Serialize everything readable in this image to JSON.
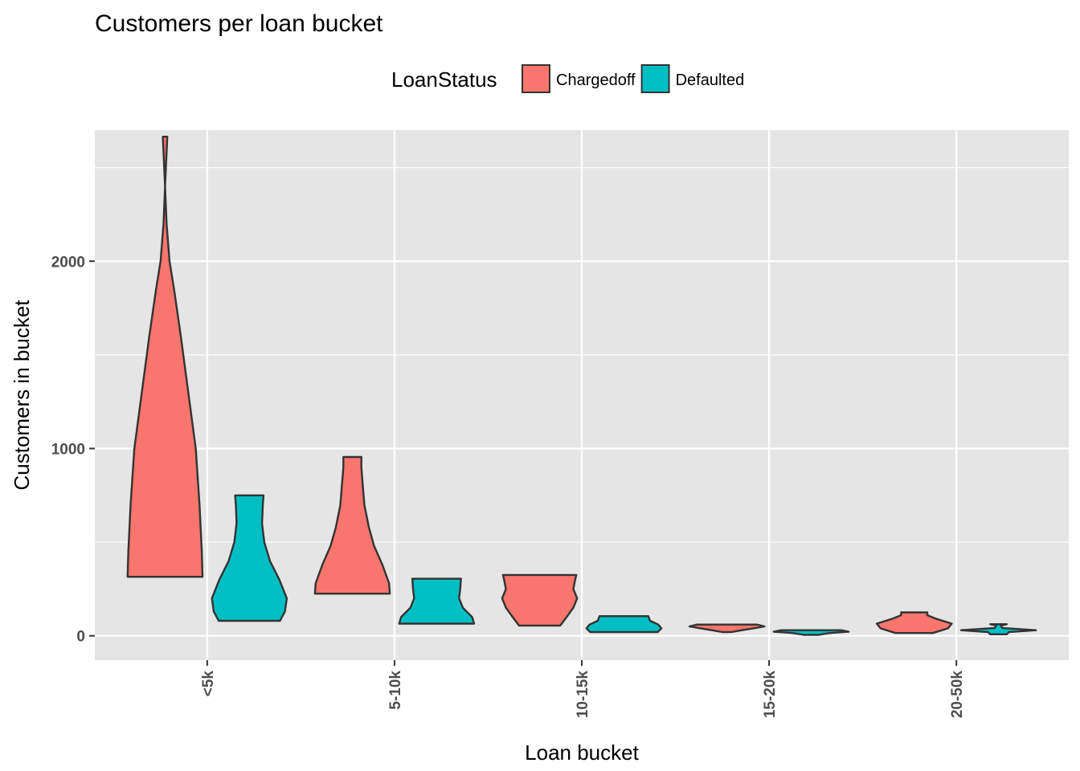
{
  "chart_data": {
    "type": "violin",
    "title": "Customers per loan bucket",
    "xlabel": "Loan bucket",
    "ylabel": "Customers in bucket",
    "categories": [
      "<5k",
      "5-10k",
      "10-15k",
      "15-20k",
      "20-50k"
    ],
    "ylim": [
      -130,
      2700
    ],
    "yticks": [
      0,
      1000,
      2000
    ],
    "grid": true,
    "legend": {
      "title": "LoanStatus",
      "position": "top",
      "entries": [
        "Chargedoff",
        "Defaulted"
      ]
    },
    "series": [
      {
        "name": "Chargedoff",
        "color": "#F8766D",
        "violins": [
          {
            "min": 315,
            "max": 2665,
            "profile": [
              [
                315,
                1.0
              ],
              [
                450,
                0.98
              ],
              [
                700,
                0.92
              ],
              [
                1000,
                0.82
              ],
              [
                1300,
                0.62
              ],
              [
                1600,
                0.42
              ],
              [
                1850,
                0.24
              ],
              [
                2000,
                0.12
              ],
              [
                2200,
                0.04
              ],
              [
                2400,
                0.0
              ],
              [
                2665,
                0.06
              ]
            ]
          },
          {
            "min": 225,
            "max": 955,
            "profile": [
              [
                225,
                1.0
              ],
              [
                280,
                0.98
              ],
              [
                380,
                0.8
              ],
              [
                480,
                0.58
              ],
              [
                580,
                0.44
              ],
              [
                700,
                0.32
              ],
              [
                800,
                0.28
              ],
              [
                900,
                0.24
              ],
              [
                955,
                0.24
              ]
            ]
          },
          {
            "min": 55,
            "max": 325,
            "profile": [
              [
                55,
                0.55
              ],
              [
                100,
                0.72
              ],
              [
                150,
                0.9
              ],
              [
                200,
                1.0
              ],
              [
                250,
                0.9
              ],
              [
                300,
                0.95
              ],
              [
                325,
                0.98
              ]
            ]
          },
          {
            "min": 20,
            "max": 60,
            "profile": [
              [
                20,
                0.12
              ],
              [
                30,
                0.4
              ],
              [
                40,
                0.7
              ],
              [
                50,
                1.0
              ],
              [
                60,
                0.8
              ]
            ]
          },
          {
            "min": 15,
            "max": 125,
            "profile": [
              [
                15,
                0.5
              ],
              [
                40,
                0.9
              ],
              [
                65,
                1.0
              ],
              [
                90,
                0.6
              ],
              [
                110,
                0.35
              ],
              [
                125,
                0.35
              ]
            ]
          }
        ]
      },
      {
        "name": "Defaulted",
        "color": "#00BFC4",
        "violins": [
          {
            "min": 80,
            "max": 750,
            "profile": [
              [
                80,
                0.82
              ],
              [
                130,
                0.95
              ],
              [
                200,
                1.0
              ],
              [
                300,
                0.8
              ],
              [
                400,
                0.55
              ],
              [
                500,
                0.4
              ],
              [
                600,
                0.34
              ],
              [
                700,
                0.36
              ],
              [
                750,
                0.38
              ]
            ]
          },
          {
            "min": 65,
            "max": 305,
            "profile": [
              [
                65,
                1.0
              ],
              [
                100,
                0.95
              ],
              [
                150,
                0.7
              ],
              [
                200,
                0.6
              ],
              [
                250,
                0.63
              ],
              [
                305,
                0.65
              ]
            ]
          },
          {
            "min": 20,
            "max": 105,
            "profile": [
              [
                20,
                0.9
              ],
              [
                40,
                1.0
              ],
              [
                60,
                0.92
              ],
              [
                80,
                0.7
              ],
              [
                105,
                0.65
              ]
            ]
          },
          {
            "min": 5,
            "max": 30,
            "profile": [
              [
                5,
                0.2
              ],
              [
                15,
                0.5
              ],
              [
                22,
                1.0
              ],
              [
                30,
                0.8
              ]
            ]
          },
          {
            "min": 8,
            "max": 62,
            "profile": [
              [
                8,
                0.22
              ],
              [
                20,
                0.28
              ],
              [
                30,
                1.0
              ],
              [
                42,
                0.1
              ],
              [
                55,
                0.06
              ],
              [
                62,
                0.22
              ]
            ]
          }
        ]
      }
    ]
  }
}
